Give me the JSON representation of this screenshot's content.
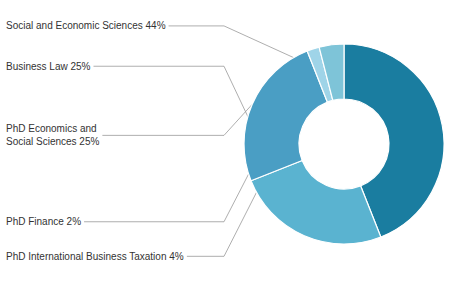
{
  "chart_data": {
    "type": "donut",
    "categories": [
      "Social and Economic Sciences 44%",
      "Business Law 25%",
      "PhD Economics and\nSocial Sciences 25%",
      "PhD Finance 2%",
      "PhD International Business Taxation 4%"
    ],
    "values": [
      44,
      25,
      25,
      2,
      4
    ],
    "colors": [
      "#1a7da0",
      "#5ab3d0",
      "#4a9ec4",
      "#9fd4e8",
      "#7ec4d8"
    ]
  }
}
